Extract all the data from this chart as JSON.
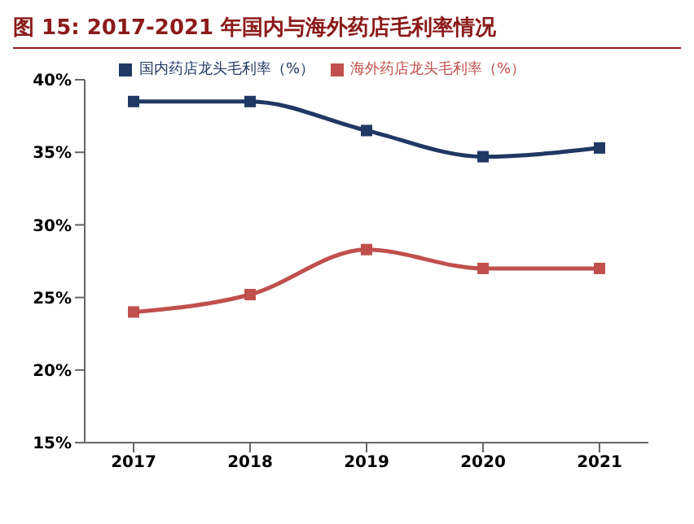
{
  "chart_data": {
    "type": "line",
    "title": "图 15: 2017-2021 年国内与海外药店毛利率情况",
    "categories": [
      "2017",
      "2018",
      "2019",
      "2020",
      "2021"
    ],
    "series": [
      {
        "name": "海外药店龙头毛利率（%）",
        "color": "#c0504d",
        "values": [
          24.0,
          25.2,
          28.3,
          27.0,
          27.0
        ]
      },
      {
        "name": "国内药店龙头毛利率（%）",
        "color": "#1f3864",
        "values": [
          38.5,
          38.5,
          36.5,
          34.7,
          35.3
        ]
      }
    ],
    "ylim": [
      15,
      40
    ],
    "yticks": [
      {
        "value": 15,
        "label": "15%"
      },
      {
        "value": 20,
        "label": "20%"
      },
      {
        "value": 25,
        "label": "25%"
      },
      {
        "value": 30,
        "label": "30%"
      },
      {
        "value": 35,
        "label": "35%"
      },
      {
        "value": 40,
        "label": "40%"
      }
    ],
    "marker": "square",
    "legend": "top",
    "grid": false
  }
}
